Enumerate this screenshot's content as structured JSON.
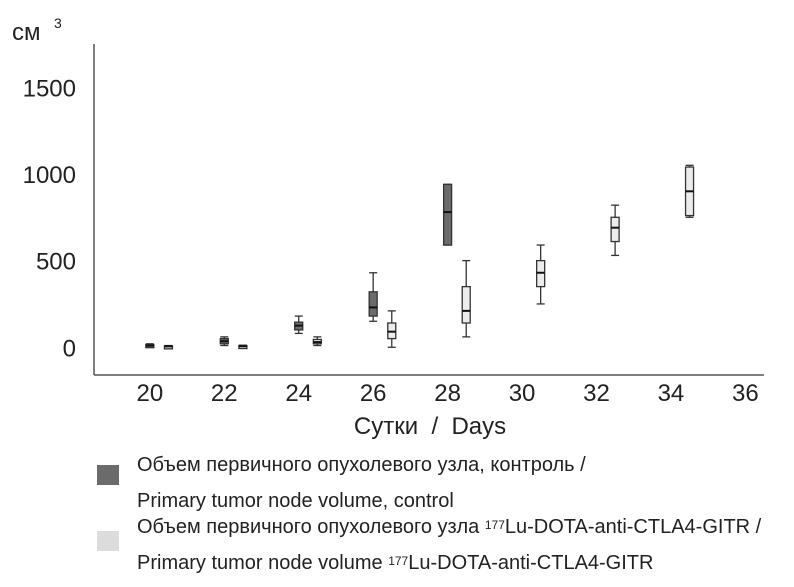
{
  "chart_data": {
    "type": "box",
    "y_unit": "см",
    "y_unit_sup": "3",
    "xlabel": "Сутки  /  Days",
    "x_ticks": [
      "20",
      "22",
      "24",
      "26",
      "28",
      "30",
      "32",
      "34",
      "36"
    ],
    "y_ticks": [
      "0",
      "500",
      "1000",
      "1500"
    ],
    "xlim": [
      18.5,
      36.5
    ],
    "ylim": [
      -160,
      1750
    ],
    "grid": false,
    "legend_position": "bottom",
    "series": [
      {
        "name_ru": "Объем первичного опухолевого узла, контроль /",
        "name_en": "Primary tumor node volume, control",
        "color": "#6b6b6b",
        "boxes": [
          {
            "day": 20,
            "min": 0,
            "q1": 5,
            "median": 10,
            "q3": 15,
            "max": 20
          },
          {
            "day": 22,
            "min": 10,
            "q1": 20,
            "median": 35,
            "q3": 50,
            "max": 60
          },
          {
            "day": 24,
            "min": 80,
            "q1": 100,
            "median": 125,
            "q3": 145,
            "max": 180
          },
          {
            "day": 26,
            "min": 150,
            "q1": 180,
            "median": 230,
            "q3": 320,
            "max": 430
          },
          {
            "day": 28,
            "min": 590,
            "q1": 590,
            "median": 780,
            "q3": 940,
            "max": 940
          }
        ]
      },
      {
        "name_ru_prefix": "Объем первичного опухолевого узла ",
        "name_ru_sup": "177",
        "name_ru_suffix": "Lu-DOTA-anti-CTLA4-GITR /",
        "name_en_prefix": "Primary tumor node volume ",
        "name_en_sup": "177",
        "name_en_suffix": "Lu-DOTA-anti-CTLA4-GITR",
        "color": "#ececec",
        "boxes": [
          {
            "day": 20.5,
            "min": 0,
            "q1": 2,
            "median": 5,
            "q3": 8,
            "max": 10
          },
          {
            "day": 22.5,
            "min": 0,
            "q1": 3,
            "median": 6,
            "q3": 10,
            "max": 12
          },
          {
            "day": 24.5,
            "min": 10,
            "q1": 20,
            "median": 30,
            "q3": 45,
            "max": 60
          },
          {
            "day": 26.5,
            "min": 0,
            "q1": 50,
            "median": 90,
            "q3": 140,
            "max": 210
          },
          {
            "day": 28.5,
            "min": 60,
            "q1": 140,
            "median": 210,
            "q3": 350,
            "max": 500
          },
          {
            "day": 30.5,
            "min": 250,
            "q1": 350,
            "median": 430,
            "q3": 500,
            "max": 590
          },
          {
            "day": 32.5,
            "min": 530,
            "q1": 610,
            "median": 690,
            "q3": 750,
            "max": 820
          },
          {
            "day": 34.5,
            "min": 750,
            "q1": 760,
            "median": 900,
            "q3": 1040,
            "max": 1050
          }
        ]
      }
    ]
  }
}
